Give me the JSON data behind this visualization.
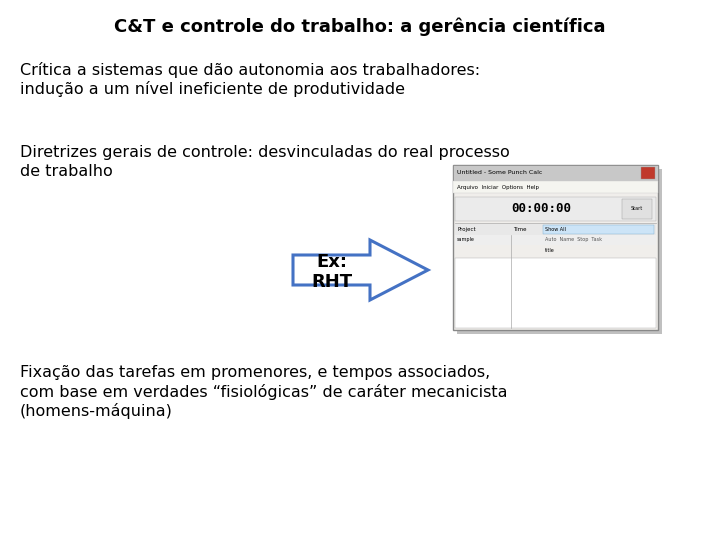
{
  "title": "C&T e controle do trabalho: a gerência científica",
  "title_fontsize": 13,
  "bg_color": "#ffffff",
  "text_color": "#000000",
  "bullet1_line1": "Crítica a sistemas que dão autonomia aos trabalhadores:",
  "bullet1_line2": "indução a um nível ineficiente de produtividade",
  "bullet2_line1": "Diretrizes gerais de controle: desvinculadas do real processo",
  "bullet2_line2": "de trabalho",
  "arrow_label_line1": "Ex:",
  "arrow_label_line2": "RHT",
  "bullet3_line1": "Fixação das tarefas em promenores, e tempos associados,",
  "bullet3_line2": "com base em verdades “fisiológicas” de caráter mecanicista",
  "bullet3_line3": "(homens-máquina)",
  "arrow_color": "#4472c4",
  "body_fontsize": 11.5,
  "arrow_text_fontsize": 13,
  "win_timer_text": "00:00:00",
  "win_title_text": "Untitled - Some Punch Calc",
  "win_menu_text": "Arquivo  Iniciar  Options  Help",
  "win_project_label": "Project",
  "win_time_label": "Time",
  "win_col_headers": "Auto  Name  Stop  Task",
  "win_row1": "sample",
  "win_row2": "title"
}
